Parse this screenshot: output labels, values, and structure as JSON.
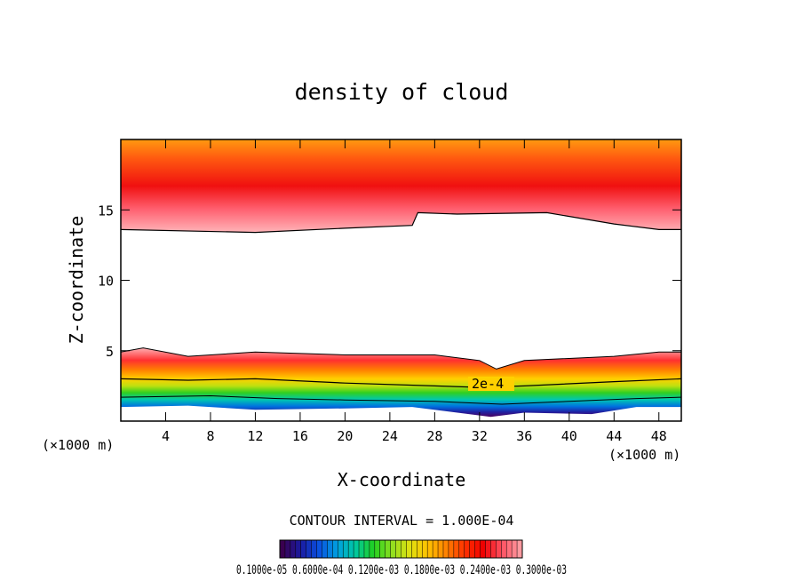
{
  "chart_data": {
    "type": "heatmap",
    "title": "density of cloud",
    "xlabel": "X-coordinate",
    "ylabel": "Z-coordinate",
    "x_unit": "(×1000 m)",
    "y_unit": "(×1000 m)",
    "xlim": [
      0,
      50
    ],
    "ylim": [
      0,
      20
    ],
    "x_ticks": [
      4,
      8,
      12,
      16,
      20,
      24,
      28,
      32,
      36,
      40,
      44,
      48
    ],
    "y_ticks": [
      5,
      10,
      15
    ],
    "contour_interval_text": "CONTOUR INTERVAL = 1.000E-04",
    "contour_label": "2e-4",
    "colorbar_label_text": "0.1000e-05 0.6000e-04 0.1200e-03 0.1800e-03 0.2400e-03 0.3000e-03",
    "colorbar_colors": [
      "#3a0050",
      "#1a1aa0",
      "#0a50e0",
      "#00a0e0",
      "#00c8a0",
      "#20d020",
      "#90e020",
      "#e0e010",
      "#ffc000",
      "#ff8000",
      "#ff3000",
      "#f00000",
      "#ff5060",
      "#ff9aa0"
    ],
    "upper_band_boundary": [
      [
        0,
        13.6
      ],
      [
        12,
        13.4
      ],
      [
        20,
        13.7
      ],
      [
        26,
        13.9
      ],
      [
        26.5,
        14.8
      ],
      [
        30,
        14.7
      ],
      [
        38,
        14.8
      ],
      [
        44,
        14.0
      ],
      [
        48,
        13.6
      ],
      [
        50,
        13.6
      ]
    ],
    "lower_band_top": [
      [
        0,
        4.9
      ],
      [
        2,
        5.2
      ],
      [
        6,
        4.6
      ],
      [
        12,
        4.9
      ],
      [
        20,
        4.7
      ],
      [
        28,
        4.7
      ],
      [
        32,
        4.3
      ],
      [
        33.5,
        3.7
      ],
      [
        36,
        4.3
      ],
      [
        44,
        4.6
      ],
      [
        48,
        4.9
      ],
      [
        50,
        4.9
      ]
    ],
    "contour_2e4": [
      [
        0,
        3.0
      ],
      [
        6,
        2.9
      ],
      [
        12,
        3.0
      ],
      [
        20,
        2.7
      ],
      [
        28,
        2.5
      ],
      [
        32,
        2.4
      ],
      [
        36,
        2.5
      ],
      [
        44,
        2.8
      ],
      [
        50,
        3.0
      ]
    ],
    "contour_lower": [
      [
        0,
        1.7
      ],
      [
        8,
        1.8
      ],
      [
        14,
        1.6
      ],
      [
        20,
        1.5
      ],
      [
        28,
        1.4
      ],
      [
        34,
        1.2
      ],
      [
        40,
        1.4
      ],
      [
        46,
        1.6
      ],
      [
        50,
        1.7
      ]
    ],
    "lower_band_bottom": [
      [
        0,
        1.0
      ],
      [
        6,
        1.1
      ],
      [
        12,
        0.8
      ],
      [
        20,
        0.9
      ],
      [
        26,
        1.0
      ],
      [
        33,
        0.3
      ],
      [
        36,
        0.6
      ],
      [
        42,
        0.5
      ],
      [
        46,
        1.0
      ],
      [
        50,
        1.0
      ]
    ]
  }
}
